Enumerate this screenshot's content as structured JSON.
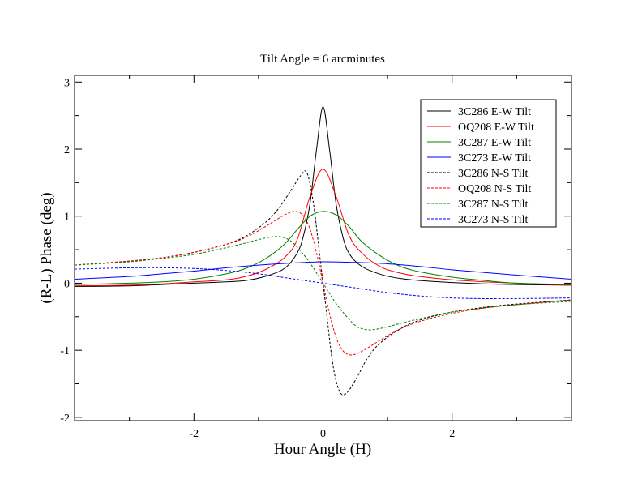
{
  "chart_data": {
    "type": "line",
    "title": "Tilt Angle = 6 arcminutes",
    "xlabel": "Hour Angle (H)",
    "ylabel": "(R-L) Phase (deg)",
    "xlim": [
      -3.85,
      3.85
    ],
    "ylim": [
      -2.05,
      3.1
    ],
    "xticks": [
      {
        "value": -2,
        "label": "-2"
      },
      {
        "value": 0,
        "label": "0"
      },
      {
        "value": 2,
        "label": "2"
      }
    ],
    "yticks": [
      {
        "value": -2,
        "label": "-2"
      },
      {
        "value": -1,
        "label": "-1"
      },
      {
        "value": 0,
        "label": "0"
      },
      {
        "value": 1,
        "label": "1"
      },
      {
        "value": 2,
        "label": "2"
      },
      {
        "value": 3,
        "label": "3"
      }
    ],
    "legend_position": "top-right",
    "grid": false,
    "series": [
      {
        "name": "3C286 E-W Tilt",
        "color": "#000000",
        "dash": "solid",
        "x": [
          -3.85,
          -3,
          -2.5,
          -2,
          -1.5,
          -1.2,
          -0.9,
          -0.6,
          -0.4,
          -0.3,
          -0.2,
          -0.1,
          0,
          0.1,
          0.2,
          0.3,
          0.4,
          0.6,
          0.9,
          1.2,
          1.5,
          2,
          2.5,
          3,
          3.85
        ],
        "y": [
          -0.05,
          -0.04,
          -0.02,
          0.0,
          0.02,
          0.04,
          0.1,
          0.22,
          0.45,
          0.72,
          1.2,
          2.0,
          2.63,
          2.0,
          1.2,
          0.72,
          0.45,
          0.25,
          0.13,
          0.07,
          0.04,
          0.01,
          -0.01,
          -0.02,
          -0.03
        ]
      },
      {
        "name": "OQ208 E-W Tilt",
        "color": "#ff0000",
        "dash": "solid",
        "x": [
          -3.85,
          -3,
          -2.5,
          -2,
          -1.5,
          -1.2,
          -0.9,
          -0.6,
          -0.4,
          -0.2,
          0,
          0.2,
          0.4,
          0.6,
          0.9,
          1.2,
          1.5,
          2,
          2.5,
          3,
          3.85
        ],
        "y": [
          -0.04,
          -0.03,
          -0.01,
          0.02,
          0.05,
          0.1,
          0.2,
          0.38,
          0.65,
          1.3,
          1.7,
          1.3,
          0.72,
          0.45,
          0.24,
          0.15,
          0.1,
          0.05,
          0.02,
          0.0,
          -0.03
        ]
      },
      {
        "name": "3C287 E-W Tilt",
        "color": "#008000",
        "dash": "solid",
        "x": [
          -3.85,
          -3,
          -2.5,
          -2,
          -1.5,
          -1.2,
          -0.9,
          -0.6,
          -0.4,
          -0.2,
          0,
          0.2,
          0.4,
          0.6,
          0.9,
          1.2,
          1.5,
          2,
          2.5,
          3,
          3.85
        ],
        "y": [
          -0.02,
          0.0,
          0.02,
          0.06,
          0.14,
          0.22,
          0.36,
          0.58,
          0.8,
          1.0,
          1.07,
          1.02,
          0.85,
          0.62,
          0.4,
          0.25,
          0.17,
          0.09,
          0.04,
          0.0,
          -0.02
        ]
      },
      {
        "name": "3C273 E-W Tilt",
        "color": "#0000ff",
        "dash": "solid",
        "x": [
          -3.85,
          -3,
          -2.5,
          -2,
          -1.5,
          -1,
          -0.5,
          0,
          0.5,
          1,
          1.5,
          2,
          2.5,
          3,
          3.85
        ],
        "y": [
          0.06,
          0.1,
          0.14,
          0.18,
          0.23,
          0.27,
          0.3,
          0.32,
          0.31,
          0.29,
          0.25,
          0.2,
          0.16,
          0.12,
          0.06
        ]
      },
      {
        "name": "3C286 N-S Tilt",
        "color": "#000000",
        "dash": "dashed",
        "x": [
          -3.85,
          -3,
          -2.5,
          -2,
          -1.5,
          -1.2,
          -0.9,
          -0.7,
          -0.5,
          -0.35,
          -0.25,
          -0.15,
          -0.05,
          0,
          0.05,
          0.15,
          0.25,
          0.35,
          0.5,
          0.7,
          0.9,
          1.2,
          1.5,
          2,
          2.5,
          3,
          3.85
        ],
        "y": [
          0.27,
          0.33,
          0.38,
          0.46,
          0.58,
          0.7,
          0.9,
          1.1,
          1.38,
          1.6,
          1.65,
          1.2,
          0.4,
          0.0,
          -0.4,
          -1.2,
          -1.6,
          -1.65,
          -1.45,
          -1.1,
          -0.88,
          -0.68,
          -0.55,
          -0.43,
          -0.36,
          -0.31,
          -0.25
        ]
      },
      {
        "name": "OQ208 N-S Tilt",
        "color": "#ff0000",
        "dash": "dashed",
        "x": [
          -3.85,
          -3,
          -2.5,
          -2,
          -1.5,
          -1.2,
          -0.9,
          -0.7,
          -0.55,
          -0.42,
          -0.3,
          -0.2,
          -0.1,
          0,
          0.1,
          0.2,
          0.3,
          0.42,
          0.55,
          0.7,
          0.9,
          1.2,
          1.5,
          2,
          2.5,
          3,
          3.85
        ],
        "y": [
          0.27,
          0.33,
          0.38,
          0.46,
          0.58,
          0.68,
          0.84,
          0.96,
          1.04,
          1.07,
          1.0,
          0.8,
          0.45,
          0.0,
          -0.45,
          -0.8,
          -1.0,
          -1.07,
          -1.04,
          -0.96,
          -0.84,
          -0.68,
          -0.57,
          -0.45,
          -0.37,
          -0.32,
          -0.25
        ]
      },
      {
        "name": "3C287 N-S Tilt",
        "color": "#008000",
        "dash": "dashed",
        "x": [
          -3.85,
          -3,
          -2.5,
          -2,
          -1.5,
          -1.2,
          -1,
          -0.8,
          -0.65,
          -0.5,
          -0.35,
          -0.2,
          0,
          0.2,
          0.35,
          0.5,
          0.65,
          0.8,
          1,
          1.2,
          1.5,
          2,
          2.5,
          3,
          3.85
        ],
        "y": [
          0.27,
          0.32,
          0.37,
          0.43,
          0.53,
          0.6,
          0.65,
          0.69,
          0.69,
          0.63,
          0.48,
          0.3,
          0.0,
          -0.3,
          -0.48,
          -0.63,
          -0.69,
          -0.69,
          -0.65,
          -0.6,
          -0.53,
          -0.43,
          -0.37,
          -0.32,
          -0.27
        ]
      },
      {
        "name": "3C273 N-S Tilt",
        "color": "#0000ff",
        "dash": "dashed",
        "x": [
          -3.85,
          -3,
          -2.5,
          -2,
          -1.5,
          -1,
          -0.5,
          0,
          0.5,
          1,
          1.5,
          2,
          2.5,
          3,
          3.85
        ],
        "y": [
          0.21,
          0.23,
          0.23,
          0.22,
          0.19,
          0.14,
          0.07,
          0.0,
          -0.07,
          -0.14,
          -0.19,
          -0.22,
          -0.23,
          -0.23,
          -0.22
        ]
      }
    ]
  }
}
